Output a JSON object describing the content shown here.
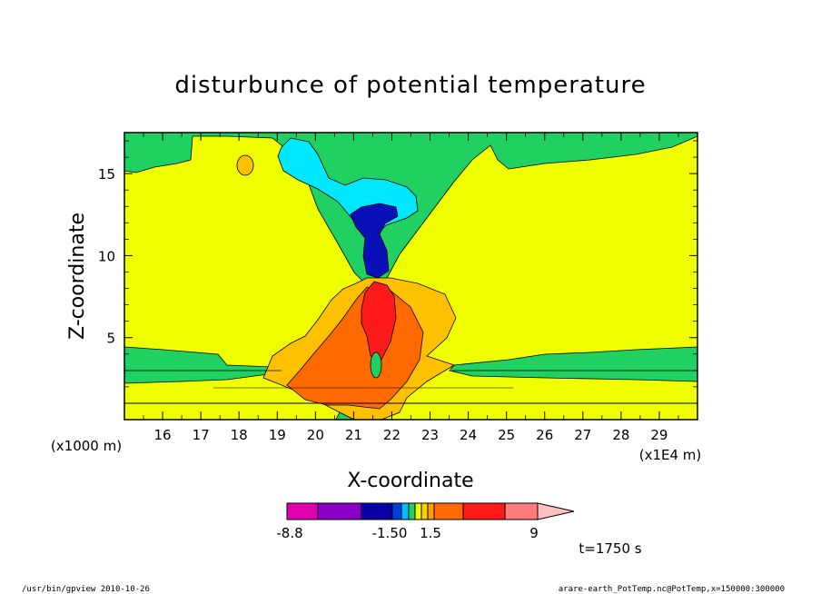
{
  "chart_data": {
    "type": "heatmap",
    "title": "disturbunce of potential temperature",
    "xlabel": "X-coordinate",
    "ylabel": "Z-coordinate",
    "x_unit_label": "(x1E4 m)",
    "y_unit_label": "(x1000 m)",
    "xlim": [
      15.0,
      30.0
    ],
    "ylim": [
      0.0,
      17.5
    ],
    "xticks": [
      "16",
      "17",
      "18",
      "19",
      "20",
      "21",
      "22",
      "23",
      "24",
      "25",
      "26",
      "27",
      "28",
      "29"
    ],
    "yticks": [
      "5",
      "10",
      "15"
    ],
    "colorbar": {
      "labels": [
        "-8.8",
        "-1.50",
        "1.5",
        "9"
      ],
      "colors": [
        "#e000b0",
        "#8a00c8",
        "#0a00a8",
        "#0040e0",
        "#00c0ff",
        "#20d060",
        "#f0ff00",
        "#ffd000",
        "#ffa000",
        "#ff6a00",
        "#ff1a1a",
        "#ff7a7a",
        "#ffc0c0"
      ]
    },
    "time_label": "t=1750 s",
    "footer_left": "/usr/bin/gpview   2010-10-26",
    "footer_right": "arare-earth_PotTemp.nc@PotTemp,x=150000:300000",
    "fill_colors": {
      "background": "#f0ff00",
      "weak_negative": "#20d060",
      "negative": "#00e8ff",
      "strong_negative": "#0a10b8",
      "weak_positive": "#ffc000",
      "positive": "#ff6a00",
      "strong_positive": "#ff1a1a"
    }
  }
}
